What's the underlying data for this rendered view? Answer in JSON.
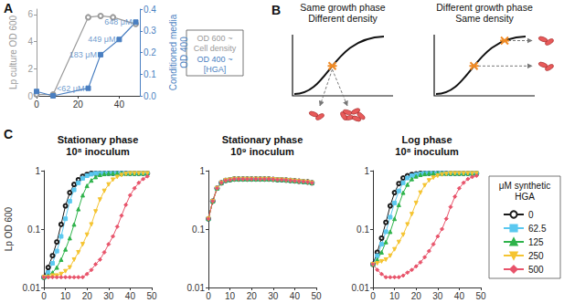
{
  "chart_data": [
    {
      "label": "A",
      "type": "line",
      "ylabel": "Lp culture OD 600",
      "y2label": [
        "Conditioned media",
        "OD 400"
      ],
      "xlim": [
        0,
        50
      ],
      "xticks": [
        0,
        20,
        40
      ],
      "ylim": [
        0,
        6.4
      ],
      "yticks": [
        0,
        2,
        4,
        6
      ],
      "y2lim": [
        0,
        0.4
      ],
      "y2ticks": [
        {
          "value": 0,
          "label": "0.0"
        },
        0.1,
        0.2,
        0.3,
        0.4
      ],
      "grid": false,
      "series": [
        {
          "color": "#9a9a9a",
          "marker": "circle-open",
          "x": [
            0,
            8,
            25,
            31,
            37,
            48
          ],
          "values": [
            0.1,
            0.1,
            5.8,
            5.9,
            5.8,
            5.3
          ]
        },
        {
          "color": "#4a7fc1",
          "marker": "square",
          "axis": "y2",
          "x": [
            0,
            8,
            25,
            31,
            40,
            48
          ],
          "values": [
            0.02,
            0.0,
            0.035,
            0.19,
            0.26,
            0.34
          ]
        }
      ],
      "annotations": [
        {
          "x": 25,
          "y": 0.035,
          "text": "<62 μM",
          "axis": "y2"
        },
        {
          "x": 31,
          "y": 0.19,
          "text": "183 μM",
          "axis": "y2"
        },
        {
          "x": 40,
          "y": 0.26,
          "text": "449 μM",
          "axis": "y2"
        },
        {
          "x": 48,
          "y": 0.34,
          "text": "648 μM",
          "axis": "y2"
        }
      ],
      "notes": [
        [
          "OD 600 ~",
          "Cell density"
        ],
        [
          "OD 400 ~",
          "[HGA]"
        ]
      ]
    },
    {
      "label": "C",
      "type": "line",
      "title": [
        "Stationary phase",
        "10⁸ inoculum"
      ],
      "ylabel": "Lp OD 600",
      "log": "y",
      "xlim": [
        0,
        50
      ],
      "xticks": [
        0,
        10,
        20,
        30,
        40,
        50
      ],
      "ylim": [
        0.01,
        1
      ],
      "yticks": [
        0.01,
        0.1,
        1
      ],
      "grid": false,
      "x": [
        0,
        2,
        4,
        6,
        8,
        10,
        12,
        14,
        16,
        18,
        20,
        22,
        24,
        26,
        28,
        30,
        32,
        34,
        36,
        38,
        40,
        42,
        44,
        46,
        48
      ],
      "series": [
        {
          "name": "0",
          "color": "#1a1a1a",
          "marker": "circle-open",
          "values": [
            0.015,
            0.022,
            0.035,
            0.06,
            0.12,
            0.25,
            0.42,
            0.58,
            0.7,
            0.8,
            0.86,
            0.9,
            0.9,
            0.9,
            0.9,
            0.9,
            0.9,
            0.9,
            0.9,
            0.9,
            0.9,
            0.9,
            0.9,
            0.9,
            0.9
          ]
        },
        {
          "name": "62.5",
          "color": "#5bc8f0",
          "marker": "square",
          "values": [
            0.015,
            0.018,
            0.026,
            0.042,
            0.075,
            0.15,
            0.3,
            0.47,
            0.62,
            0.74,
            0.82,
            0.87,
            0.9,
            0.9,
            0.9,
            0.9,
            0.9,
            0.9,
            0.9,
            0.9,
            0.9,
            0.9,
            0.9,
            0.9,
            0.9
          ]
        },
        {
          "name": "125",
          "color": "#2fb34b",
          "marker": "triangle",
          "values": [
            0.015,
            0.016,
            0.018,
            0.022,
            0.03,
            0.045,
            0.07,
            0.12,
            0.22,
            0.38,
            0.55,
            0.68,
            0.78,
            0.85,
            0.88,
            0.9,
            0.9,
            0.9,
            0.9,
            0.9,
            0.9,
            0.9,
            0.9,
            0.9,
            0.9
          ]
        },
        {
          "name": "250",
          "color": "#f5c431",
          "marker": "triangle-down",
          "values": [
            0.015,
            0.015,
            0.016,
            0.016,
            0.017,
            0.019,
            0.022,
            0.03,
            0.04,
            0.055,
            0.08,
            0.12,
            0.2,
            0.32,
            0.45,
            0.58,
            0.7,
            0.78,
            0.84,
            0.88,
            0.9,
            0.9,
            0.9,
            0.9,
            0.9
          ]
        },
        {
          "name": "500",
          "color": "#e8546b",
          "marker": "diamond",
          "values": [
            0.015,
            0.015,
            0.015,
            0.015,
            0.015,
            0.015,
            0.015,
            0.015,
            0.015,
            0.015,
            0.017,
            0.02,
            0.025,
            0.03,
            0.04,
            0.055,
            0.075,
            0.11,
            0.17,
            0.26,
            0.38,
            0.5,
            0.62,
            0.72,
            0.8
          ]
        }
      ]
    },
    {
      "type": "line",
      "title": [
        "Stationary phase",
        "10⁹ inoculum"
      ],
      "log": "y",
      "xlim": [
        0,
        50
      ],
      "xticks": [
        0,
        10,
        20,
        30,
        40,
        50
      ],
      "ylim": [
        0.01,
        1
      ],
      "yticks": [
        0.01,
        0.1,
        1
      ],
      "grid": false,
      "x": [
        0,
        2,
        4,
        6,
        8,
        10,
        12,
        14,
        16,
        18,
        20,
        22,
        24,
        26,
        28,
        30,
        32,
        34,
        36,
        38,
        40,
        42,
        44,
        46,
        48
      ],
      "series": [
        {
          "name": "0",
          "color": "#1a1a1a",
          "marker": "circle-open",
          "values": [
            0.15,
            0.3,
            0.5,
            0.62,
            0.68,
            0.7,
            0.72,
            0.72,
            0.72,
            0.72,
            0.72,
            0.72,
            0.72,
            0.72,
            0.72,
            0.71,
            0.7,
            0.7,
            0.69,
            0.68,
            0.67,
            0.66,
            0.65,
            0.64,
            0.62
          ]
        },
        {
          "name": "62.5",
          "color": "#5bc8f0",
          "marker": "square",
          "values": [
            0.15,
            0.3,
            0.5,
            0.62,
            0.68,
            0.7,
            0.72,
            0.72,
            0.72,
            0.72,
            0.72,
            0.72,
            0.72,
            0.72,
            0.72,
            0.71,
            0.7,
            0.7,
            0.69,
            0.68,
            0.67,
            0.66,
            0.65,
            0.64,
            0.62
          ]
        },
        {
          "name": "125",
          "color": "#2fb34b",
          "marker": "triangle",
          "values": [
            0.15,
            0.3,
            0.5,
            0.62,
            0.68,
            0.7,
            0.72,
            0.72,
            0.72,
            0.72,
            0.72,
            0.72,
            0.72,
            0.72,
            0.72,
            0.71,
            0.7,
            0.7,
            0.69,
            0.68,
            0.67,
            0.66,
            0.65,
            0.64,
            0.62
          ]
        },
        {
          "name": "250",
          "color": "#f5c431",
          "marker": "triangle-down",
          "values": [
            0.15,
            0.3,
            0.5,
            0.62,
            0.68,
            0.7,
            0.72,
            0.72,
            0.72,
            0.72,
            0.72,
            0.72,
            0.72,
            0.72,
            0.72,
            0.71,
            0.7,
            0.7,
            0.69,
            0.68,
            0.67,
            0.66,
            0.65,
            0.64,
            0.62
          ]
        },
        {
          "name": "500",
          "color": "#e8546b",
          "marker": "diamond",
          "values": [
            0.15,
            0.3,
            0.5,
            0.62,
            0.68,
            0.7,
            0.72,
            0.72,
            0.72,
            0.72,
            0.72,
            0.72,
            0.72,
            0.72,
            0.72,
            0.71,
            0.7,
            0.7,
            0.69,
            0.68,
            0.67,
            0.66,
            0.65,
            0.64,
            0.62
          ]
        }
      ]
    },
    {
      "type": "line",
      "title": [
        "Log phase",
        "10⁸ inoculum"
      ],
      "log": "y",
      "xlim": [
        0,
        50
      ],
      "xticks": [
        0,
        10,
        20,
        30,
        40,
        50
      ],
      "ylim": [
        0.01,
        1
      ],
      "yticks": [
        0.01,
        0.1,
        1
      ],
      "grid": false,
      "legend": "right",
      "legend_title": [
        "μM synthetic",
        "HGA"
      ],
      "x": [
        0,
        2,
        4,
        6,
        8,
        10,
        12,
        14,
        16,
        18,
        20,
        22,
        24,
        26,
        28,
        30,
        32,
        34,
        36,
        38,
        40,
        42,
        44,
        46,
        48
      ],
      "series": [
        {
          "name": "0",
          "color": "#1a1a1a",
          "marker": "circle-open",
          "values": [
            0.025,
            0.04,
            0.07,
            0.13,
            0.25,
            0.42,
            0.6,
            0.75,
            0.82,
            0.86,
            0.88,
            0.9,
            0.9,
            0.9,
            0.9,
            0.9,
            0.9,
            0.9,
            0.9,
            0.9,
            0.9,
            0.9,
            0.9,
            0.9,
            0.9
          ]
        },
        {
          "name": "62.5",
          "color": "#5bc8f0",
          "marker": "square",
          "values": [
            0.025,
            0.035,
            0.055,
            0.09,
            0.16,
            0.28,
            0.45,
            0.62,
            0.75,
            0.82,
            0.86,
            0.88,
            0.9,
            0.9,
            0.9,
            0.9,
            0.9,
            0.9,
            0.9,
            0.9,
            0.9,
            0.9,
            0.9,
            0.9,
            0.9
          ]
        },
        {
          "name": "125",
          "color": "#2fb34b",
          "marker": "triangle",
          "values": [
            0.025,
            0.03,
            0.04,
            0.06,
            0.09,
            0.15,
            0.26,
            0.42,
            0.58,
            0.72,
            0.8,
            0.85,
            0.88,
            0.9,
            0.9,
            0.9,
            0.9,
            0.9,
            0.9,
            0.9,
            0.9,
            0.9,
            0.9,
            0.9,
            0.9
          ]
        },
        {
          "name": "250",
          "color": "#f5c431",
          "marker": "triangle-down",
          "values": [
            0.025,
            0.026,
            0.028,
            0.03,
            0.035,
            0.045,
            0.06,
            0.08,
            0.12,
            0.18,
            0.28,
            0.42,
            0.56,
            0.68,
            0.76,
            0.82,
            0.86,
            0.88,
            0.9,
            0.9,
            0.9,
            0.9,
            0.9,
            0.9,
            0.9
          ]
        },
        {
          "name": "500",
          "color": "#e8546b",
          "marker": "diamond",
          "values": [
            0.025,
            0.02,
            0.017,
            0.015,
            0.015,
            0.015,
            0.015,
            0.016,
            0.018,
            0.02,
            0.023,
            0.027,
            0.033,
            0.042,
            0.055,
            0.075,
            0.1,
            0.15,
            0.24,
            0.36,
            0.5,
            0.62,
            0.72,
            0.78,
            0.82
          ]
        }
      ]
    }
  ],
  "diagram": {
    "label": "B",
    "panels": [
      {
        "title": [
          "Same growth phase",
          "Different density"
        ]
      },
      {
        "title": [
          "Different growth phase",
          "Same density"
        ]
      }
    ]
  }
}
